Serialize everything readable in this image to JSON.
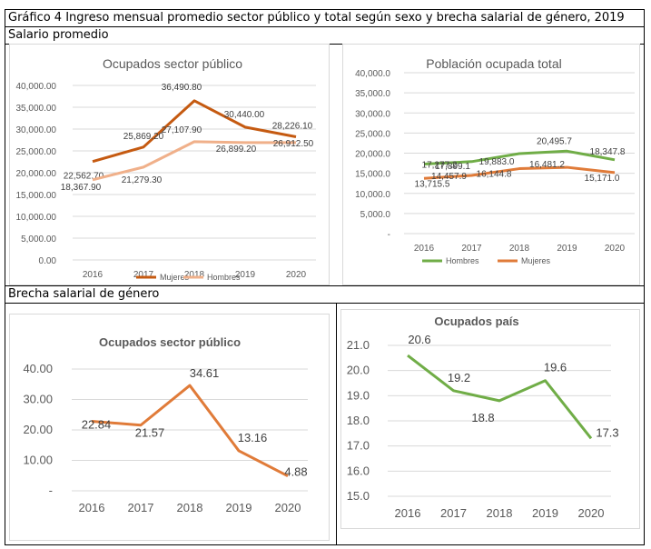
{
  "figure_title": "Gráfico 4 Ingreso mensual promedio sector público y total según sexo y brecha salarial de género, 2019",
  "section_salary": "Salario promedio",
  "section_gap": "Brecha salarial de género",
  "colors": {
    "orange": "#e07b39",
    "brown": "#c55a11",
    "peach": "#f0b08a",
    "green": "#70ad47",
    "grid": "#d9d9d9",
    "text": "#595959"
  },
  "chart_data": [
    {
      "id": "c1",
      "type": "line",
      "title": "Ocupados sector público",
      "categories": [
        "2016",
        "2017",
        "2018",
        "2019",
        "2020"
      ],
      "ylim": [
        0,
        40000
      ],
      "yticks": [
        0,
        5000,
        10000,
        15000,
        20000,
        25000,
        30000,
        35000,
        40000
      ],
      "ytick_labels": [
        "0.00",
        "5,000.00",
        "10,000.00",
        "15,000.00",
        "20,000.00",
        "25,000.00",
        "30,000.00",
        "35,000.00",
        "40,000.00"
      ],
      "series": [
        {
          "name": "Mujeres",
          "values": [
            22562.7,
            25869.2,
            36490.8,
            30440.0,
            28226.1
          ],
          "labels": [
            "22,562.70",
            "25,869.20",
            "36,490.80",
            "30,440.00",
            "28,226.10"
          ],
          "color": "#c55a11"
        },
        {
          "name": "Hombres",
          "values": [
            18367.9,
            21279.3,
            27107.9,
            26899.2,
            26912.5
          ],
          "labels": [
            "18,367.90",
            "21,279.30",
            "27,107.90",
            "26,899.20",
            "26,912.50"
          ],
          "color": "#f0b08a"
        }
      ],
      "legend": [
        "Mujeres",
        "Hombres"
      ]
    },
    {
      "id": "c2",
      "type": "line",
      "title": "Población ocupada total",
      "categories": [
        "2016",
        "2017",
        "2018",
        "2019",
        "2020"
      ],
      "ylim": [
        0,
        40000
      ],
      "yticks": [
        0,
        5000,
        10000,
        15000,
        20000,
        25000,
        30000,
        35000,
        40000
      ],
      "ytick_labels": [
        "-",
        "5,000.0",
        "10,000.0",
        "15,000.0",
        "20,000.0",
        "25,000.0",
        "30,000.0",
        "35,000.0",
        "40,000.0"
      ],
      "series": [
        {
          "name": "Hombres",
          "values": [
            17277.2,
            17899.1,
            19883.0,
            20495.7,
            18347.8
          ],
          "labels": [
            "17,277.2",
            "17,899.1",
            "19,883.0",
            "20,495.7",
            "18,347.8"
          ],
          "color": "#70ad47"
        },
        {
          "name": "Mujeres",
          "values": [
            13715.5,
            14457.9,
            16144.8,
            16481.2,
            15171.0
          ],
          "labels": [
            "13,715.5",
            "14,457.9",
            "16,144.8",
            "16,481.2",
            "15,171.0"
          ],
          "color": "#e07b39"
        }
      ],
      "legend": [
        "Hombres",
        "Mujeres"
      ]
    },
    {
      "id": "c3",
      "type": "line",
      "title": "Ocupados sector público",
      "categories": [
        "2016",
        "2017",
        "2018",
        "2019",
        "2020"
      ],
      "ylim": [
        0,
        40
      ],
      "yticks": [
        0,
        10,
        20,
        30,
        40
      ],
      "ytick_labels": [
        "-",
        "10.00",
        "20.00",
        "30.00",
        "40.00"
      ],
      "series": [
        {
          "name": "Brecha",
          "values": [
            22.84,
            21.57,
            34.61,
            13.16,
            4.88
          ],
          "labels": [
            "22.84",
            "21.57",
            "34.61",
            "13.16",
            "4.88"
          ],
          "color": "#e07b39"
        }
      ]
    },
    {
      "id": "c4",
      "type": "line",
      "title": "Ocupados país",
      "categories": [
        "2016",
        "2017",
        "2018",
        "2019",
        "2020"
      ],
      "ylim": [
        15,
        21
      ],
      "yticks": [
        15,
        16,
        17,
        18,
        19,
        20,
        21
      ],
      "ytick_labels": [
        "15.0",
        "16.0",
        "17.0",
        "18.0",
        "19.0",
        "20.0",
        "21.0"
      ],
      "series": [
        {
          "name": "Brecha",
          "values": [
            20.6,
            19.2,
            18.8,
            19.6,
            17.3
          ],
          "labels": [
            "20.6",
            "19.2",
            "18.8",
            "19.6",
            "17.3"
          ],
          "color": "#70ad47"
        }
      ]
    }
  ]
}
